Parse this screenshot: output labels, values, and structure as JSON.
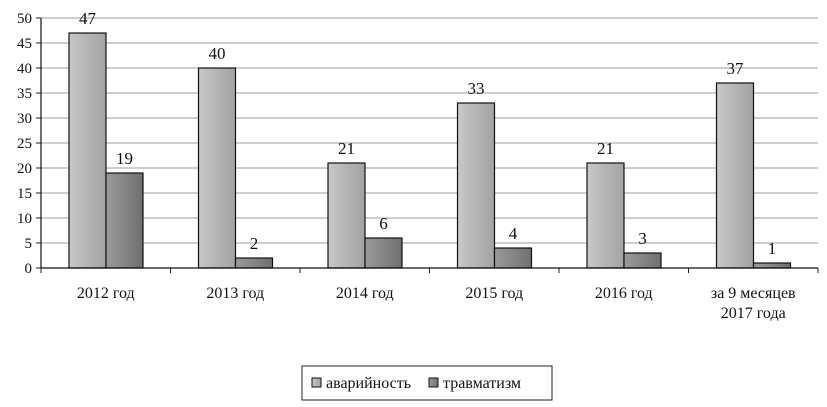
{
  "chart_data": {
    "type": "bar",
    "categories": [
      [
        "2012 год"
      ],
      [
        "2013 год"
      ],
      [
        "2014 год"
      ],
      [
        "2015 год"
      ],
      [
        "2016 год"
      ],
      [
        "за 9 месяцев",
        "2017 года"
      ]
    ],
    "series": [
      {
        "name": "аварийность",
        "values": [
          47,
          40,
          21,
          33,
          21,
          37
        ],
        "color": "#b4b4b4"
      },
      {
        "name": "травматизм",
        "values": [
          19,
          2,
          6,
          4,
          3,
          1
        ],
        "color": "#858585"
      }
    ],
    "ylim": [
      0,
      50
    ],
    "yticks": [
      0,
      5,
      10,
      15,
      20,
      25,
      30,
      35,
      40,
      45,
      50
    ],
    "grid": true,
    "legend_position": "bottom-center",
    "data_labels": true
  }
}
